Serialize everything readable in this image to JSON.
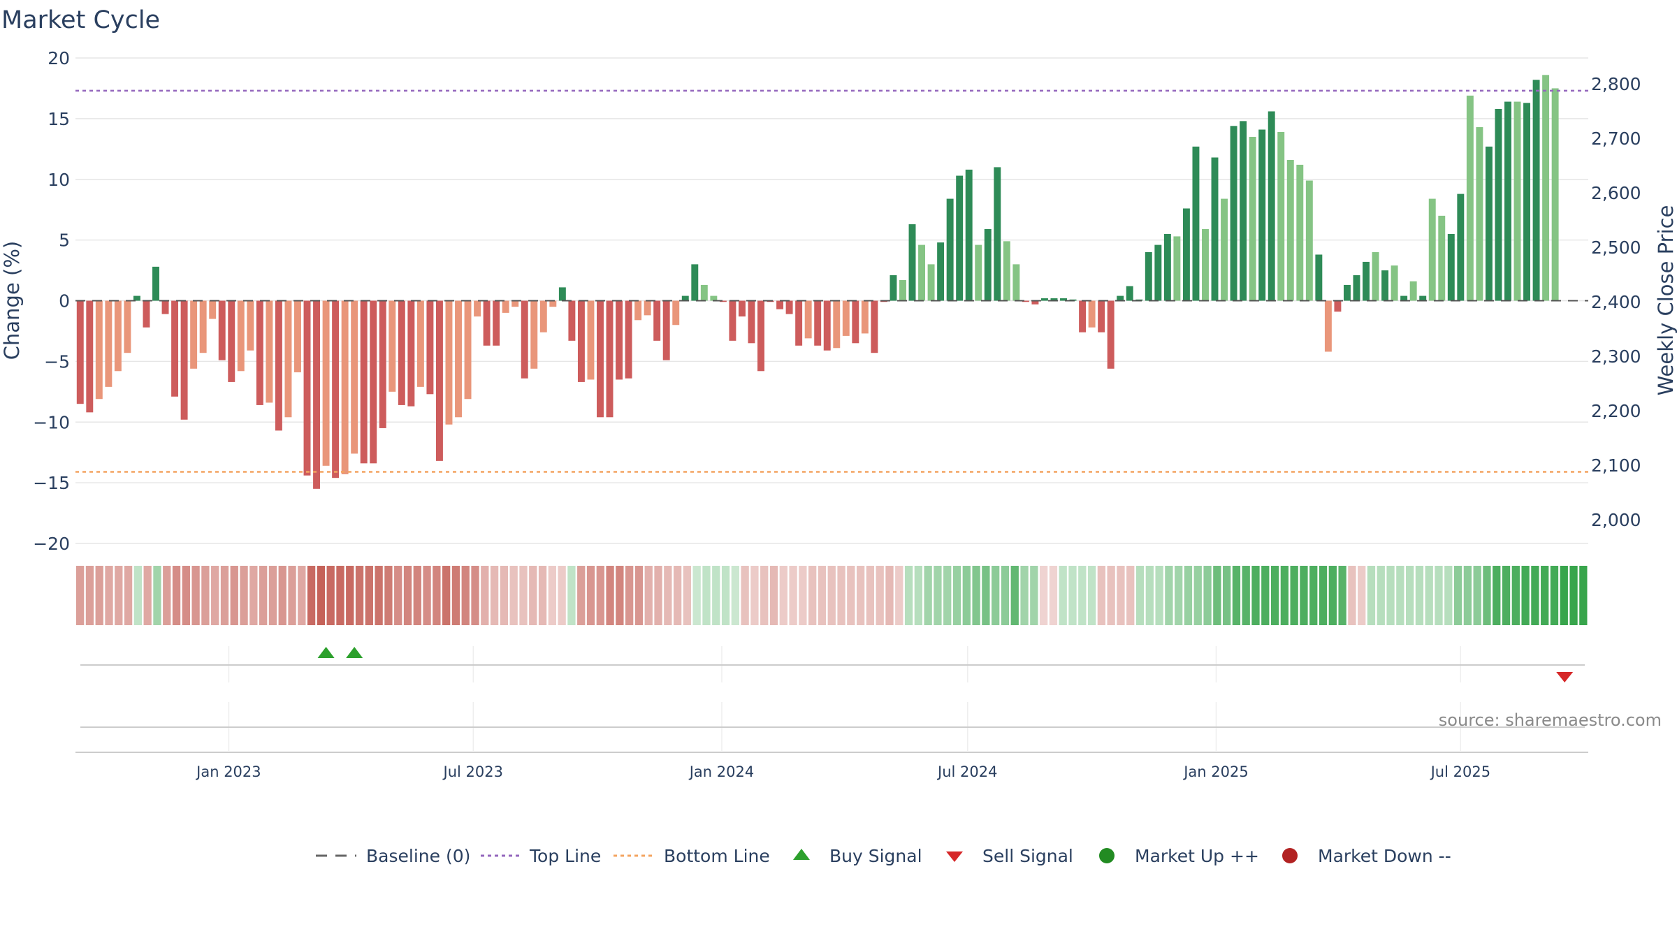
{
  "title": "Market Cycle",
  "source": "source: sharemaestro.com",
  "colors": {
    "strong_up": "#2e8b57",
    "weak_up": "#85c484",
    "strong_down": "#cd5c5c",
    "weak_down": "#e9967a",
    "top_line": "#9467bd",
    "bottom_line": "#f4a460",
    "buy": "#2ca02c",
    "sell": "#d62728",
    "market_up": "#228b22",
    "market_down": "#b22222"
  },
  "legend": [
    {
      "label": "Baseline (0)",
      "icon": "dash-line-gray"
    },
    {
      "label": "Top Line",
      "icon": "dotted-line-purple"
    },
    {
      "label": "Bottom Line",
      "icon": "dotted-line-orange"
    },
    {
      "label": "Buy Signal",
      "icon": "triangle-up-green"
    },
    {
      "label": "Sell Signal",
      "icon": "triangle-down-red"
    },
    {
      "label": "Market Up ++",
      "icon": "circle-green"
    },
    {
      "label": "Market Down --",
      "icon": "circle-red"
    }
  ],
  "chart_data": {
    "type": "bar",
    "title": "Market Cycle",
    "ylabel": "Change (%)",
    "y2label": "Weekly Close Price",
    "ylim": [
      -20,
      20
    ],
    "yticks": [
      20,
      15,
      10,
      5,
      0,
      -5,
      -10,
      -15,
      -20
    ],
    "yticklabels": [
      "20",
      "15",
      "10",
      "5",
      "0",
      "−5",
      "−10",
      "−15",
      "−20"
    ],
    "y2ticks": [
      2800,
      2700,
      2600,
      2500,
      2400,
      2300,
      2200,
      2100,
      2000
    ],
    "y2ticklabels": [
      "2,800",
      "2,700",
      "2,600",
      "2,500",
      "2,400",
      "2,300",
      "2,200",
      "2,100",
      "2,000"
    ],
    "x_start": "2022-09-13",
    "x_end": "2025-09-30",
    "x_step_days": 7,
    "xticks": [
      "2023-01-01",
      "2023-07-01",
      "2024-01-01",
      "2024-07-01",
      "2025-01-01",
      "2025-07-01"
    ],
    "xticklabels": [
      "Jan 2023",
      "Jul 2023",
      "Jan 2024",
      "Jul 2024",
      "Jan 2025",
      "Jul 2025"
    ],
    "top_line": 17.3,
    "bottom_line": -14.1,
    "values": [
      -8.5,
      -9.2,
      -8.1,
      -7.1,
      -5.8,
      -4.3,
      0.4,
      -2.2,
      2.8,
      -1.1,
      -7.9,
      -9.8,
      -5.6,
      -4.3,
      -1.5,
      -4.9,
      -6.7,
      -5.8,
      -4.1,
      -8.6,
      -8.4,
      -10.7,
      -9.6,
      -5.9,
      -14.4,
      -15.5,
      -13.6,
      -14.6,
      -14.3,
      -12.6,
      -13.4,
      -13.4,
      -10.5,
      -7.5,
      -8.6,
      -8.7,
      -7.1,
      -7.7,
      -13.2,
      -10.2,
      -9.6,
      -8.1,
      -1.3,
      -3.7,
      -3.7,
      -1.0,
      -0.5,
      -6.4,
      -5.6,
      -2.6,
      -0.5,
      1.1,
      -3.3,
      -6.7,
      -6.5,
      -9.6,
      -9.6,
      -6.5,
      -6.4,
      -1.6,
      -1.2,
      -3.3,
      -4.9,
      -2.0,
      0.4,
      3.0,
      1.3,
      0.4,
      -0.1,
      -3.3,
      -1.3,
      -3.5,
      -5.8,
      -0.1,
      -0.7,
      -1.1,
      -3.7,
      -3.1,
      -3.7,
      -4.1,
      -3.9,
      -2.9,
      -3.5,
      -2.7,
      -4.3,
      -0.1,
      2.1,
      1.7,
      6.3,
      4.6,
      3.0,
      4.8,
      8.4,
      10.3,
      10.8,
      4.6,
      5.9,
      11.0,
      4.9,
      3.0,
      -0.1,
      -0.3,
      0.2,
      0.2,
      0.2,
      0.1,
      -2.6,
      -2.2,
      -2.6,
      -5.6,
      0.4,
      1.2,
      0.1,
      4.0,
      4.6,
      5.5,
      5.3,
      7.6,
      12.7,
      5.9,
      11.8,
      8.4,
      14.4,
      14.8,
      13.5,
      14.1,
      15.6,
      13.9,
      11.6,
      11.2,
      9.9,
      3.8,
      -4.2,
      -0.9,
      1.3,
      2.1,
      3.2,
      4.0,
      2.5,
      2.9,
      0.4,
      1.6,
      0.4,
      8.4,
      7.0,
      5.5,
      8.8,
      16.9,
      14.3,
      12.7,
      15.8,
      16.4,
      16.4,
      16.3,
      18.2,
      18.6,
      17.5
    ],
    "strong": [
      1,
      1,
      0,
      0,
      0,
      0,
      1,
      1,
      1,
      1,
      1,
      1,
      0,
      0,
      0,
      1,
      1,
      0,
      0,
      1,
      0,
      1,
      0,
      0,
      1,
      1,
      0,
      1,
      0,
      0,
      1,
      1,
      1,
      0,
      1,
      1,
      0,
      1,
      1,
      0,
      0,
      0,
      0,
      1,
      1,
      0,
      0,
      1,
      0,
      0,
      0,
      1,
      1,
      1,
      0,
      1,
      1,
      1,
      1,
      0,
      0,
      1,
      1,
      0,
      1,
      1,
      0,
      0,
      1,
      1,
      1,
      1,
      1,
      1,
      1,
      1,
      1,
      0,
      1,
      1,
      0,
      0,
      1,
      0,
      1,
      1,
      1,
      0,
      1,
      0,
      0,
      1,
      1,
      1,
      1,
      0,
      1,
      1,
      0,
      0,
      1,
      1,
      1,
      1,
      1,
      1,
      1,
      0,
      1,
      1,
      1,
      1,
      1,
      1,
      1,
      1,
      0,
      1,
      1,
      0,
      1,
      0,
      1,
      1,
      0,
      1,
      1,
      0,
      0,
      0,
      0,
      1,
      0,
      1,
      1,
      1,
      1,
      0,
      1,
      0,
      1,
      0,
      1,
      0,
      0,
      1,
      1,
      0,
      0,
      1,
      1,
      1,
      0,
      1,
      1,
      0
    ],
    "heat": [
      -0.55,
      -0.55,
      -0.55,
      -0.5,
      -0.5,
      -0.5,
      0.3,
      -0.5,
      0.45,
      -0.55,
      -0.65,
      -0.65,
      -0.6,
      -0.55,
      -0.5,
      -0.55,
      -0.6,
      -0.55,
      -0.5,
      -0.55,
      -0.55,
      -0.6,
      -0.55,
      -0.5,
      -0.85,
      -0.9,
      -0.85,
      -0.85,
      -0.85,
      -0.8,
      -0.8,
      -0.8,
      -0.75,
      -0.65,
      -0.7,
      -0.7,
      -0.65,
      -0.7,
      -0.8,
      -0.75,
      -0.7,
      -0.65,
      -0.45,
      -0.4,
      -0.4,
      -0.35,
      -0.35,
      -0.4,
      -0.4,
      -0.3,
      -0.3,
      0.3,
      -0.55,
      -0.6,
      -0.6,
      -0.7,
      -0.7,
      -0.6,
      -0.6,
      -0.45,
      -0.45,
      -0.4,
      -0.4,
      -0.35,
      0.25,
      0.3,
      0.3,
      0.3,
      0.25,
      -0.35,
      -0.3,
      -0.35,
      -0.4,
      -0.3,
      -0.3,
      -0.3,
      -0.35,
      -0.35,
      -0.35,
      -0.35,
      -0.35,
      -0.35,
      -0.35,
      -0.35,
      -0.4,
      -0.3,
      0.35,
      0.35,
      0.45,
      0.45,
      0.45,
      0.5,
      0.55,
      0.6,
      0.65,
      0.55,
      0.55,
      0.75,
      0.45,
      0.45,
      -0.25,
      -0.25,
      0.3,
      0.3,
      0.3,
      0.3,
      -0.35,
      -0.35,
      -0.35,
      -0.35,
      0.35,
      0.35,
      0.35,
      0.45,
      0.45,
      0.5,
      0.5,
      0.55,
      0.7,
      0.65,
      0.8,
      0.8,
      0.85,
      0.85,
      0.85,
      0.85,
      0.85,
      0.85,
      0.85,
      0.85,
      0.85,
      0.8,
      -0.35,
      -0.3,
      0.35,
      0.35,
      0.35,
      0.35,
      0.35,
      0.35,
      0.35,
      0.35,
      0.35,
      0.55,
      0.55,
      0.55,
      0.7,
      0.85,
      0.85,
      0.85,
      0.9,
      0.9,
      0.9,
      0.9,
      0.95,
      0.95,
      0.95
    ],
    "buy_signals": [
      "2023-03-14",
      "2023-04-04"
    ],
    "sell_signals": [
      "2025-09-16"
    ]
  }
}
